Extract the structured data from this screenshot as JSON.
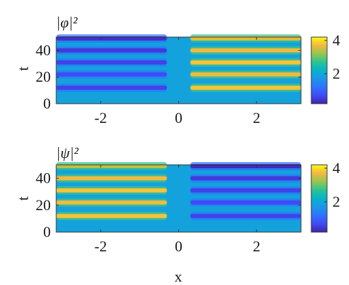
{
  "chart_data": [
    {
      "type": "heatmap",
      "title": "|φ|²",
      "xlabel": "",
      "ylabel": "t",
      "xlim": [
        -3.14,
        3.14
      ],
      "ylim": [
        0,
        50
      ],
      "xticks": [
        -2,
        0,
        2
      ],
      "xtick_labels": [
        "-2",
        "0",
        "2"
      ],
      "yticks": [
        0,
        20,
        40
      ],
      "ytick_labels": [
        "0",
        "20",
        "40"
      ],
      "colorbar": {
        "range": [
          0.2,
          4.2
        ],
        "ticks": [
          2,
          4
        ],
        "tick_labels": [
          "2",
          "4"
        ]
      },
      "background_value": 1.9,
      "bands": [
        {
          "x_start": -3.14,
          "x_end": -0.3,
          "t": 12,
          "value": 0.6
        },
        {
          "x_start": -3.14,
          "x_end": -0.3,
          "t": 22,
          "value": 0.7
        },
        {
          "x_start": -3.14,
          "x_end": -0.3,
          "t": 31,
          "value": 0.6
        },
        {
          "x_start": -3.14,
          "x_end": -0.3,
          "t": 40,
          "value": 0.5
        },
        {
          "x_start": -3.14,
          "x_end": -0.3,
          "t": 49,
          "value": 0.4
        },
        {
          "x_start": 0.3,
          "x_end": 3.14,
          "t": 12,
          "value": 3.8
        },
        {
          "x_start": 0.3,
          "x_end": 3.14,
          "t": 22,
          "value": 3.7
        },
        {
          "x_start": 0.3,
          "x_end": 3.14,
          "t": 31,
          "value": 3.8
        },
        {
          "x_start": 0.3,
          "x_end": 3.14,
          "t": 40,
          "value": 3.7
        },
        {
          "x_start": 0.3,
          "x_end": 3.14,
          "t": 49,
          "value": 3.6
        }
      ]
    },
    {
      "type": "heatmap",
      "title": "|ψ|²",
      "xlabel": "x",
      "ylabel": "t",
      "xlim": [
        -3.14,
        3.14
      ],
      "ylim": [
        0,
        50
      ],
      "xticks": [
        -2,
        0,
        2
      ],
      "xtick_labels": [
        "-2",
        "0",
        "2"
      ],
      "yticks": [
        0,
        20,
        40
      ],
      "ytick_labels": [
        "0",
        "20",
        "40"
      ],
      "colorbar": {
        "range": [
          0.2,
          4.2
        ],
        "ticks": [
          2,
          4
        ],
        "tick_labels": [
          "2",
          "4"
        ]
      },
      "background_value": 1.9,
      "bands": [
        {
          "x_start": -3.14,
          "x_end": -0.3,
          "t": 12,
          "value": 3.8
        },
        {
          "x_start": -3.14,
          "x_end": -0.3,
          "t": 22,
          "value": 3.7
        },
        {
          "x_start": -3.14,
          "x_end": -0.3,
          "t": 31,
          "value": 3.8
        },
        {
          "x_start": -3.14,
          "x_end": -0.3,
          "t": 40,
          "value": 3.7
        },
        {
          "x_start": -3.14,
          "x_end": -0.3,
          "t": 49,
          "value": 3.4
        },
        {
          "x_start": 0.3,
          "x_end": 3.14,
          "t": 12,
          "value": 0.6
        },
        {
          "x_start": 0.3,
          "x_end": 3.14,
          "t": 22,
          "value": 0.7
        },
        {
          "x_start": 0.3,
          "x_end": 3.14,
          "t": 31,
          "value": 0.6
        },
        {
          "x_start": 0.3,
          "x_end": 3.14,
          "t": 40,
          "value": 0.5
        },
        {
          "x_start": 0.3,
          "x_end": 3.14,
          "t": 49,
          "value": 0.3
        }
      ]
    }
  ]
}
